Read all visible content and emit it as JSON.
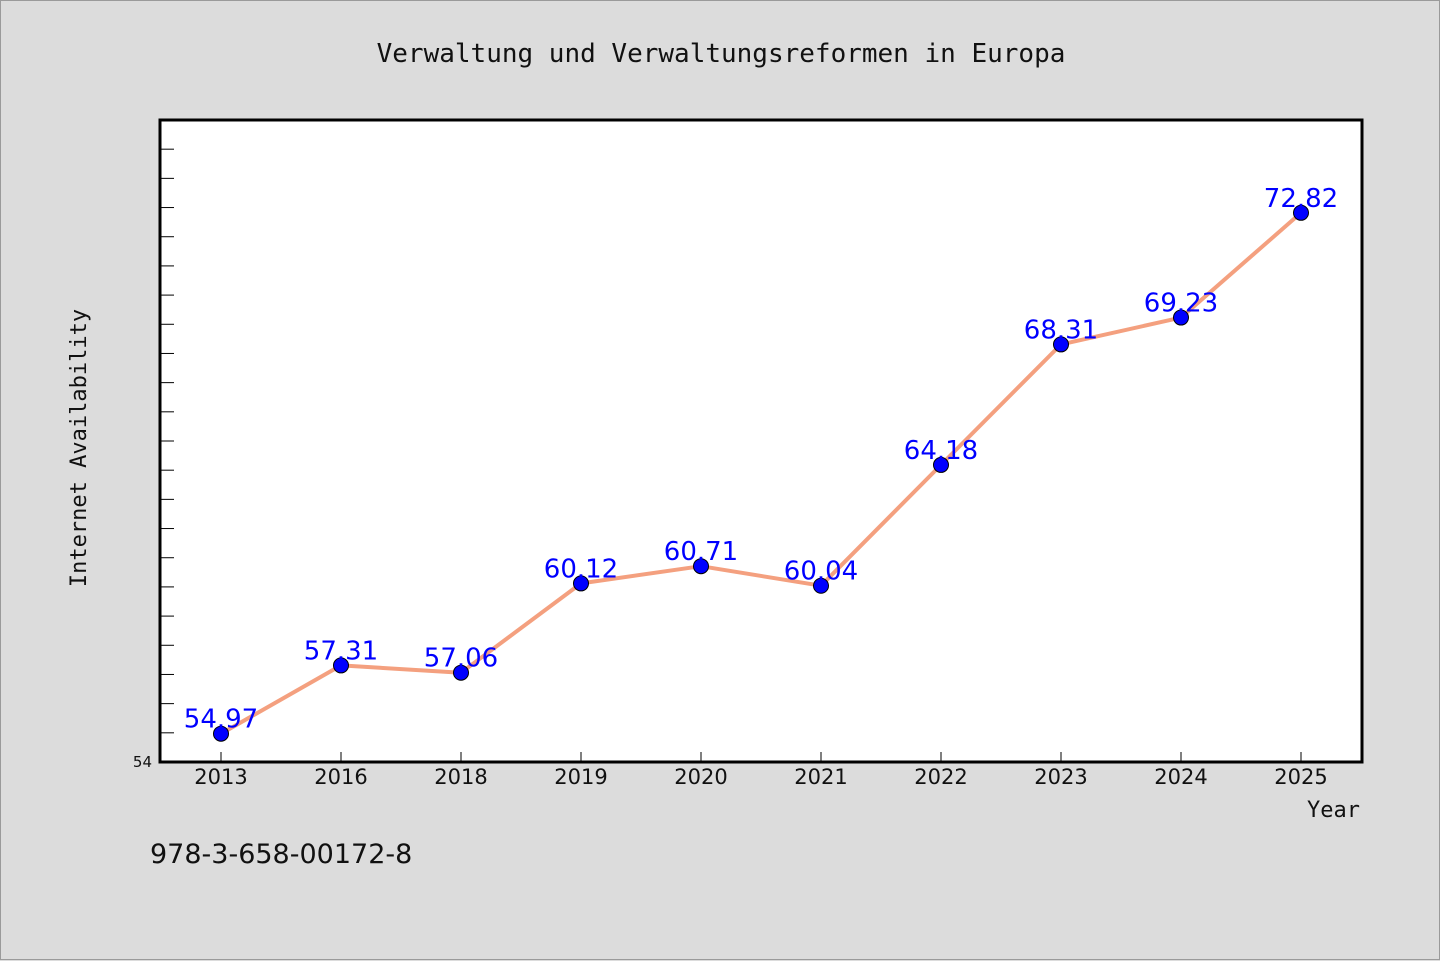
{
  "chart_data": {
    "type": "line",
    "title": "Verwaltung und Verwaltungsreformen in Europa",
    "xlabel": "Year",
    "ylabel": "Internet Availability",
    "categories": [
      "2013",
      "2016",
      "2018",
      "2019",
      "2020",
      "2021",
      "2022",
      "2023",
      "2024",
      "2025"
    ],
    "series": [
      {
        "values": [
          54.97,
          57.31,
          57.06,
          60.12,
          60.71,
          60.04,
          64.18,
          68.31,
          69.23,
          72.82
        ],
        "line_color": "#f4a07f",
        "marker_color": "#0000ff",
        "label_color": "#0000ff"
      }
    ],
    "data_labels": [
      "54.97",
      "57.31",
      "57.06",
      "60.12",
      "60.71",
      "60.04",
      "64.18",
      "68.31",
      "69.23",
      "72.82"
    ],
    "ylim": [
      54,
      76
    ],
    "ytick_labels": [
      "54"
    ],
    "grid": false,
    "legend": "none"
  },
  "footer": {
    "isbn": "978-3-658-00172-8"
  }
}
